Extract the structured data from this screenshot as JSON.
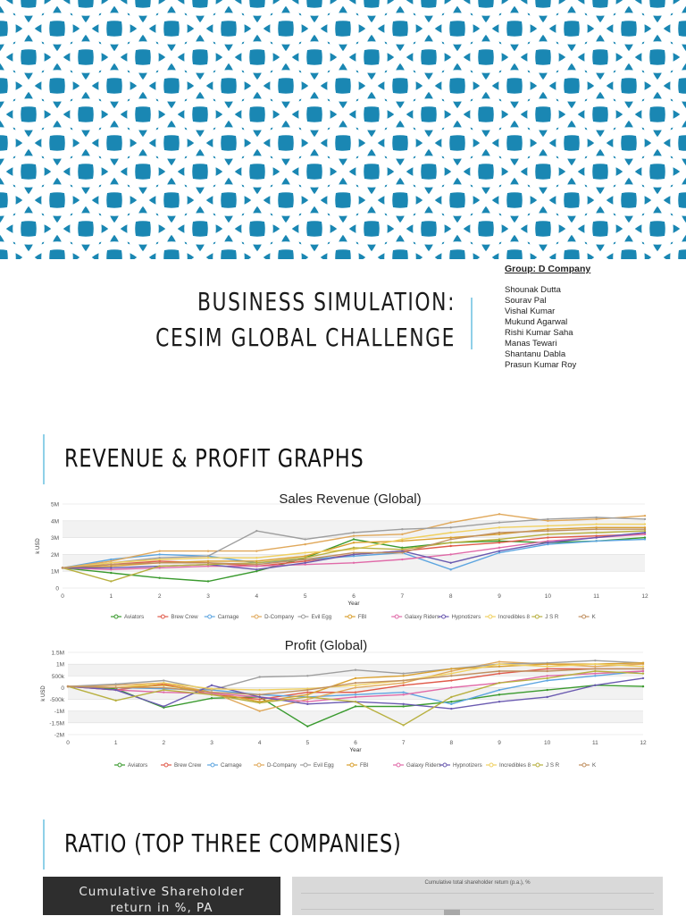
{
  "colors": {
    "banner_bg": "#1a87b3",
    "banner_pattern": "#ffffff",
    "accent_bar": "#8fd0e8"
  },
  "title": {
    "line1": "BUSINESS SIMULATION:",
    "line2": "CESIM GLOBAL CHALLENGE"
  },
  "group": {
    "title": "Group: D Company",
    "members": [
      "Shounak Dutta",
      "Sourav Pal",
      "Vishal Kumar",
      "Mukund Agarwal",
      "Rishi Kumar Saha",
      "Manas Tewari",
      "Shantanu Dabla",
      "Prasun Kumar Roy"
    ]
  },
  "sections": {
    "revenue_profit": "REVENUE & PROFIT GRAPHS",
    "ratio": "RATIO (TOP THREE COMPANIES)"
  },
  "ratio": {
    "box_line1": "Cumulative Shareholder",
    "box_line2": "return in %, PA",
    "chart_title": "Cumulative total shareholder return (p.a.), %"
  },
  "chart_data": [
    {
      "type": "line",
      "title": "Sales Revenue (Global)",
      "xlabel": "Year",
      "ylabel": "k USD",
      "x": [
        0,
        1,
        2,
        3,
        4,
        5,
        6,
        7,
        8,
        9,
        10,
        11,
        12
      ],
      "ylim": [
        0,
        5000000
      ],
      "yticks": [
        0,
        1000000,
        2000000,
        3000000,
        4000000,
        5000000
      ],
      "ytick_labels": [
        "0",
        "1M",
        "2M",
        "3M",
        "4M",
        "5M"
      ],
      "legend_position": "bottom",
      "series": [
        {
          "name": "Aviators",
          "color": "#3a9a2e",
          "values": [
            1200000,
            900000,
            600000,
            400000,
            1000000,
            1800000,
            2900000,
            2400000,
            2700000,
            2800000,
            2700000,
            2800000,
            3000000
          ]
        },
        {
          "name": "Brew Crew",
          "color": "#e05a4a",
          "values": [
            1200000,
            1400000,
            1600000,
            1500000,
            1300000,
            1600000,
            2000000,
            2200000,
            2500000,
            2700000,
            3000000,
            3100000,
            3200000
          ]
        },
        {
          "name": "Carnage",
          "color": "#5da5e0",
          "values": [
            1200000,
            1700000,
            2000000,
            1900000,
            1500000,
            1700000,
            1900000,
            2100000,
            1100000,
            2100000,
            2600000,
            2800000,
            2900000
          ]
        },
        {
          "name": "D-Company",
          "color": "#e0a85a",
          "values": [
            1200000,
            1600000,
            2200000,
            2200000,
            2200000,
            2600000,
            3100000,
            3200000,
            3900000,
            4400000,
            4000000,
            4100000,
            4300000
          ]
        },
        {
          "name": "Evil Egg",
          "color": "#9e9e9e",
          "values": [
            1200000,
            1500000,
            1800000,
            1900000,
            3400000,
            2900000,
            3300000,
            3500000,
            3600000,
            3900000,
            4100000,
            4200000,
            4100000
          ]
        },
        {
          "name": "FBI",
          "color": "#d9a030",
          "values": [
            1200000,
            1300000,
            1500000,
            1600000,
            1600000,
            1900000,
            2700000,
            2800000,
            3000000,
            3200000,
            3500000,
            3600000,
            3600000
          ]
        },
        {
          "name": "Galaxy Riders",
          "color": "#e06aa8",
          "values": [
            1200000,
            1100000,
            1200000,
            1300000,
            1300000,
            1400000,
            1500000,
            1700000,
            2000000,
            2400000,
            2800000,
            3000000,
            3200000
          ]
        },
        {
          "name": "Hypnotizers",
          "color": "#6a5ab0",
          "values": [
            1200000,
            1200000,
            1300000,
            1400000,
            1100000,
            1500000,
            2000000,
            2200000,
            1500000,
            2200000,
            2700000,
            3000000,
            3300000
          ]
        },
        {
          "name": "Incredibles 8",
          "color": "#f0d060",
          "values": [
            1200000,
            1500000,
            1700000,
            1800000,
            1800000,
            2100000,
            2300000,
            2900000,
            3300000,
            3600000,
            3700000,
            3800000,
            3800000
          ]
        },
        {
          "name": "J S R",
          "color": "#b8b040",
          "values": [
            1200000,
            400000,
            1300000,
            1400000,
            1500000,
            1800000,
            2400000,
            2300000,
            2700000,
            2900000,
            3200000,
            3300000,
            3400000
          ]
        },
        {
          "name": "K",
          "color": "#c09060",
          "values": [
            1200000,
            1400000,
            1500000,
            1500000,
            1400000,
            1700000,
            2100000,
            2100000,
            2900000,
            3300000,
            3400000,
            3500000,
            3500000
          ]
        }
      ]
    },
    {
      "type": "line",
      "title": "Profit (Global)",
      "xlabel": "Year",
      "ylabel": "k USD",
      "x": [
        0,
        1,
        2,
        3,
        4,
        5,
        6,
        7,
        8,
        9,
        10,
        11,
        12
      ],
      "ylim": [
        -2000000,
        1500000
      ],
      "yticks": [
        -2000000,
        -1500000,
        -1000000,
        -500000,
        0,
        500000,
        1000000,
        1500000
      ],
      "ytick_labels": [
        "-2M",
        "-1.5M",
        "-1M",
        "-500k",
        "0",
        "500k",
        "1M",
        "1.5M"
      ],
      "legend_position": "bottom",
      "series": [
        {
          "name": "Aviators",
          "color": "#3a9a2e",
          "values": [
            50000,
            -50000,
            -850000,
            -450000,
            -400000,
            -1650000,
            -800000,
            -800000,
            -600000,
            -300000,
            -100000,
            100000,
            50000
          ]
        },
        {
          "name": "Brew Crew",
          "color": "#e05a4a",
          "values": [
            50000,
            -100000,
            150000,
            -300000,
            -500000,
            -200000,
            -200000,
            100000,
            300000,
            600000,
            800000,
            800000,
            800000
          ]
        },
        {
          "name": "Carnage",
          "color": "#5da5e0",
          "values": [
            50000,
            0,
            -50000,
            -100000,
            -300000,
            -400000,
            -300000,
            -200000,
            -700000,
            -100000,
            300000,
            500000,
            700000
          ]
        },
        {
          "name": "D-Company",
          "color": "#e0a85a",
          "values": [
            50000,
            100000,
            200000,
            -200000,
            -1000000,
            -500000,
            0,
            200000,
            700000,
            1100000,
            1000000,
            900000,
            1000000
          ]
        },
        {
          "name": "Evil Egg",
          "color": "#9e9e9e",
          "values": [
            50000,
            150000,
            300000,
            -100000,
            450000,
            500000,
            750000,
            600000,
            800000,
            1000000,
            1050000,
            1150000,
            1050000
          ]
        },
        {
          "name": "FBI",
          "color": "#d9a030",
          "values": [
            50000,
            0,
            100000,
            -200000,
            -600000,
            -300000,
            400000,
            500000,
            800000,
            900000,
            1000000,
            1000000,
            1050000
          ]
        },
        {
          "name": "Galaxy Riders",
          "color": "#e06aa8",
          "values": [
            50000,
            -100000,
            -200000,
            -250000,
            -400000,
            -600000,
            -400000,
            -300000,
            0,
            200000,
            500000,
            600000,
            700000
          ]
        },
        {
          "name": "Hypnotizers",
          "color": "#6a5ab0",
          "values": [
            50000,
            -100000,
            -800000,
            100000,
            -400000,
            -700000,
            -600000,
            -700000,
            -900000,
            -600000,
            -400000,
            100000,
            400000
          ]
        },
        {
          "name": "Incredibles 8",
          "color": "#f0d060",
          "values": [
            50000,
            0,
            200000,
            -50000,
            -100000,
            -50000,
            100000,
            300000,
            600000,
            1000000,
            900000,
            1000000,
            900000
          ]
        },
        {
          "name": "J S R",
          "color": "#b8b040",
          "values": [
            50000,
            -550000,
            -100000,
            -300000,
            -650000,
            -400000,
            -600000,
            -1600000,
            -400000,
            200000,
            400000,
            700000,
            600000
          ]
        },
        {
          "name": "K",
          "color": "#c09060",
          "values": [
            50000,
            0,
            0,
            -200000,
            -300000,
            -100000,
            200000,
            300000,
            500000,
            700000,
            700000,
            800000,
            800000
          ]
        }
      ]
    }
  ]
}
